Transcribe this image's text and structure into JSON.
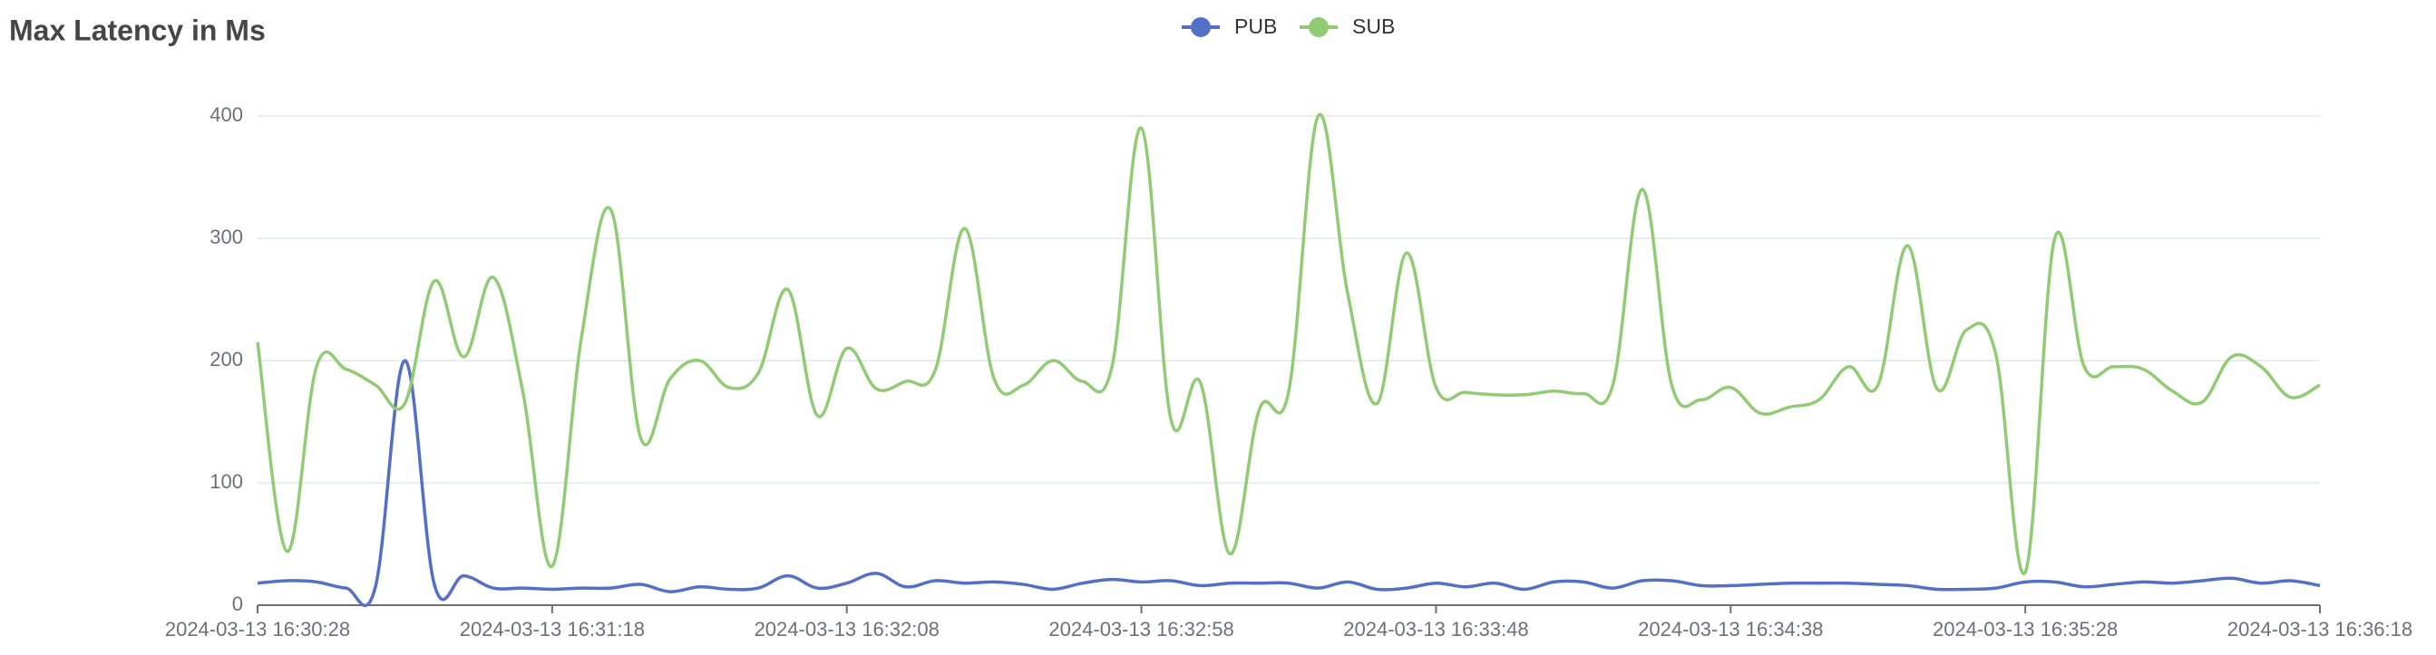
{
  "chart_data": {
    "type": "line",
    "title": "Max Latency in Ms",
    "categories": [
      "2024-03-13 16:30:28",
      null,
      null,
      null,
      null,
      null,
      null,
      null,
      null,
      null,
      "2024-03-13 16:31:18",
      null,
      null,
      null,
      null,
      null,
      null,
      null,
      null,
      null,
      "2024-03-13 16:32:08",
      null,
      null,
      null,
      null,
      null,
      null,
      null,
      null,
      null,
      "2024-03-13 16:32:58",
      null,
      null,
      null,
      null,
      null,
      null,
      null,
      null,
      null,
      "2024-03-13 16:33:48",
      null,
      null,
      null,
      null,
      null,
      null,
      null,
      null,
      null,
      "2024-03-13 16:34:38",
      null,
      null,
      null,
      null,
      null,
      null,
      null,
      null,
      null,
      "2024-03-13 16:35:28",
      null,
      null,
      null,
      null,
      null,
      null,
      null,
      null,
      null,
      "2024-03-13 16:36:18"
    ],
    "series": [
      {
        "name": "PUB",
        "color": "#5470c6",
        "values": [
          18,
          20,
          19,
          14,
          15,
          200,
          17,
          24,
          14,
          14,
          13,
          14,
          14,
          17,
          11,
          15,
          13,
          14,
          24,
          14,
          18,
          26,
          15,
          20,
          18,
          19,
          17,
          13,
          18,
          21,
          19,
          20,
          16,
          18,
          18,
          18,
          14,
          19,
          13,
          14,
          18,
          15,
          18,
          13,
          19,
          19,
          14,
          20,
          20,
          16,
          16,
          17,
          18,
          18,
          18,
          17,
          16,
          13,
          13,
          14,
          19,
          19,
          15,
          17,
          19,
          18,
          20,
          22,
          18,
          20,
          16
        ]
      },
      {
        "name": "SUB",
        "color": "#91cc75",
        "values": [
          215,
          44,
          195,
          193,
          180,
          165,
          265,
          203,
          268,
          175,
          32,
          220,
          323,
          137,
          185,
          200,
          178,
          190,
          258,
          155,
          210,
          177,
          183,
          192,
          308,
          185,
          180,
          200,
          183,
          195,
          390,
          152,
          182,
          42,
          160,
          175,
          400,
          255,
          165,
          288,
          178,
          174,
          172,
          172,
          175,
          173,
          180,
          340,
          180,
          168,
          178,
          157,
          162,
          168,
          195,
          180,
          294,
          177,
          225,
          205,
          27,
          300,
          195,
          195,
          193,
          175,
          166,
          203,
          195,
          170,
          180
        ]
      }
    ],
    "ylim": [
      0,
      400
    ],
    "yticks": [
      0,
      100,
      200,
      300,
      400
    ],
    "grid": true
  }
}
